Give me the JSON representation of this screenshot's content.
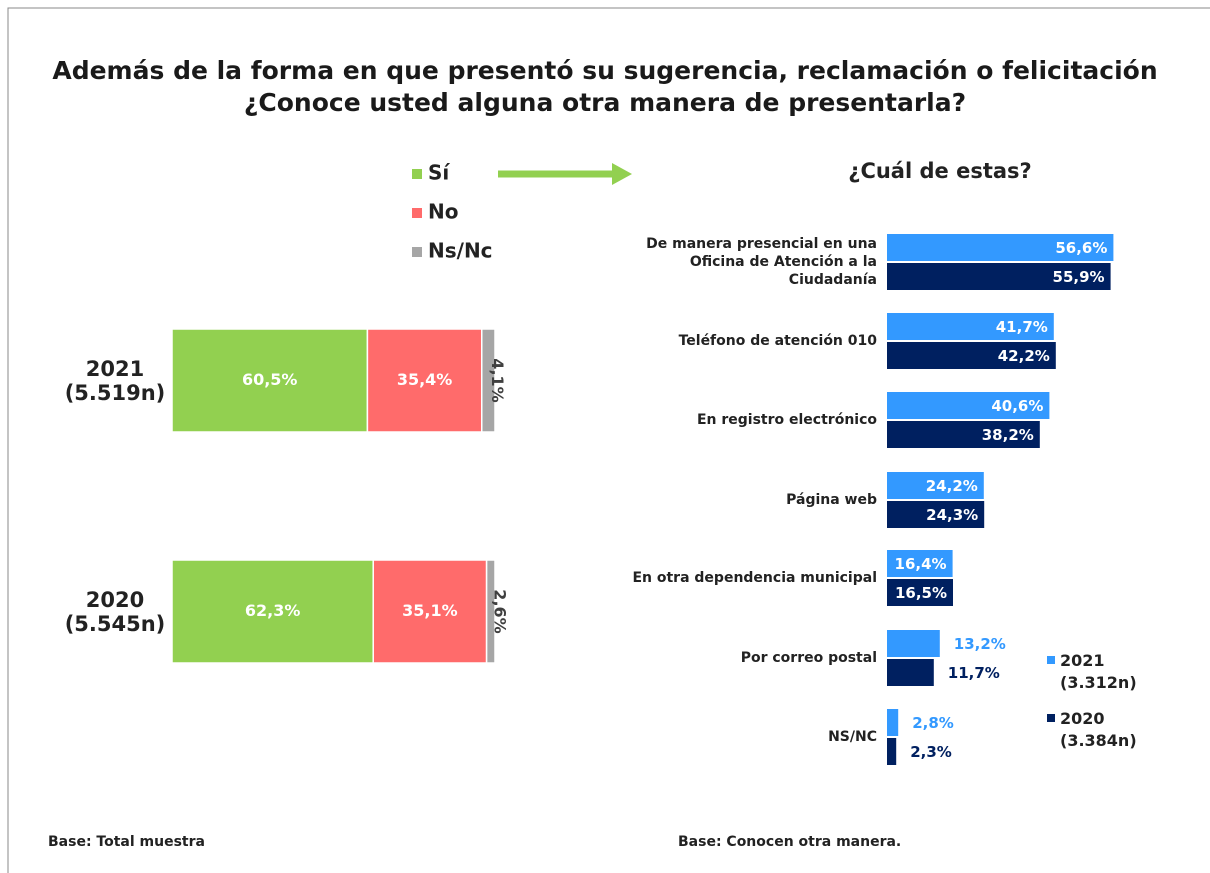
{
  "title": [
    "Además de la forma en que presentó su sugerencia, reclamación o felicitación",
    "¿Conoce usted alguna otra manera de presentarla?"
  ],
  "notes": [
    "Base: Total muestra",
    "Base: Conocen otra manera."
  ],
  "chart_data": [
    {
      "type": "stacked-bar",
      "categories": [
        "2021 (5.519n)",
        "2020 (5.545n)"
      ],
      "xlim": [
        0,
        100
      ],
      "series": [
        {
          "name": "Sí",
          "color": "#92d050",
          "values": [
            60.5,
            62.3
          ],
          "value_labels": [
            "60,5%",
            "62,3%"
          ]
        },
        {
          "name": "No",
          "color": "#ff6b6b",
          "values": [
            35.4,
            35.1
          ],
          "value_labels": [
            "35,4%",
            "35,1%"
          ]
        },
        {
          "name": "Ns/Nc",
          "color": "#a6a6a6",
          "values": [
            4.1,
            2.6
          ],
          "value_labels": [
            "4,1%",
            "2,6%"
          ]
        }
      ]
    },
    {
      "type": "grouped-bar",
      "title": "¿Cuál de estas?",
      "categories": [
        "De manera presencial en una Oficina de Atención a la Ciudadanía",
        "Teléfono de atención 010",
        "En registro electrónico",
        "Página web",
        "En otra dependencia municipal",
        "Por correo postal",
        "NS/NC"
      ],
      "xlim": [
        0,
        60
      ],
      "series": [
        {
          "name": "2021 (3.312n)",
          "color": "#3399ff",
          "values": [
            56.6,
            41.7,
            40.6,
            24.2,
            16.4,
            13.2,
            2.8
          ],
          "value_labels": [
            "56,6%",
            "41,7%",
            "40,6%",
            "24,2%",
            "16,4%",
            "13,2%",
            "2,8%"
          ]
        },
        {
          "name": "2020 (3.384n)",
          "color": "#002060",
          "values": [
            55.9,
            42.2,
            38.2,
            24.3,
            16.5,
            11.7,
            2.3
          ],
          "value_labels": [
            "55,9%",
            "42,2%",
            "38,2%",
            "24,3%",
            "16,5%",
            "11,7%",
            "2,3%"
          ]
        }
      ]
    }
  ]
}
